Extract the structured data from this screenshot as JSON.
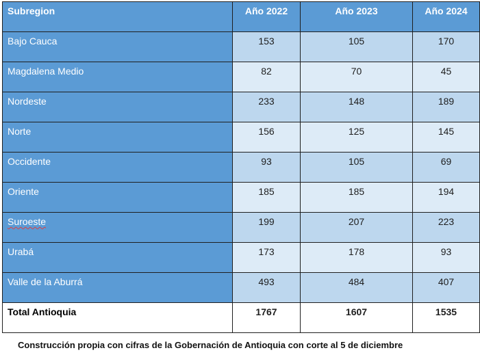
{
  "table": {
    "headers": [
      "Subregion",
      "Año 2022",
      "Año 2023",
      "Año 2024"
    ],
    "rows": [
      {
        "region": "Bajo Cauca",
        "y2022": "153",
        "y2023": "105",
        "y2024": "170"
      },
      {
        "region": "Magdalena Medio",
        "y2022": "82",
        "y2023": "70",
        "y2024": "45"
      },
      {
        "region": "Nordeste",
        "y2022": "233",
        "y2023": "148",
        "y2024": "189"
      },
      {
        "region": "Norte",
        "y2022": "156",
        "y2023": "125",
        "y2024": "145"
      },
      {
        "region": "Occidente",
        "y2022": "93",
        "y2023": "105",
        "y2024": "69"
      },
      {
        "region": "Oriente",
        "y2022": "185",
        "y2023": "185",
        "y2024": "194"
      },
      {
        "region": "Suroeste",
        "y2022": "199",
        "y2023": "207",
        "y2024": "223"
      },
      {
        "region": "Urabá",
        "y2022": "173",
        "y2023": "178",
        "y2024": "93"
      },
      {
        "region": "Valle de la Aburrá",
        "y2022": "493",
        "y2023": "484",
        "y2024": "407"
      }
    ],
    "total": {
      "region": "Total Antioquia",
      "y2022": "1767",
      "y2023": "1607",
      "y2024": "1535"
    }
  },
  "caption": "Construcción propia con cifras de la Gobernación de Antioquia con corte al 5 de diciembre",
  "colors": {
    "header": "#5b9bd5",
    "row_dark": "#bdd7ee",
    "row_light": "#ddebf7"
  }
}
